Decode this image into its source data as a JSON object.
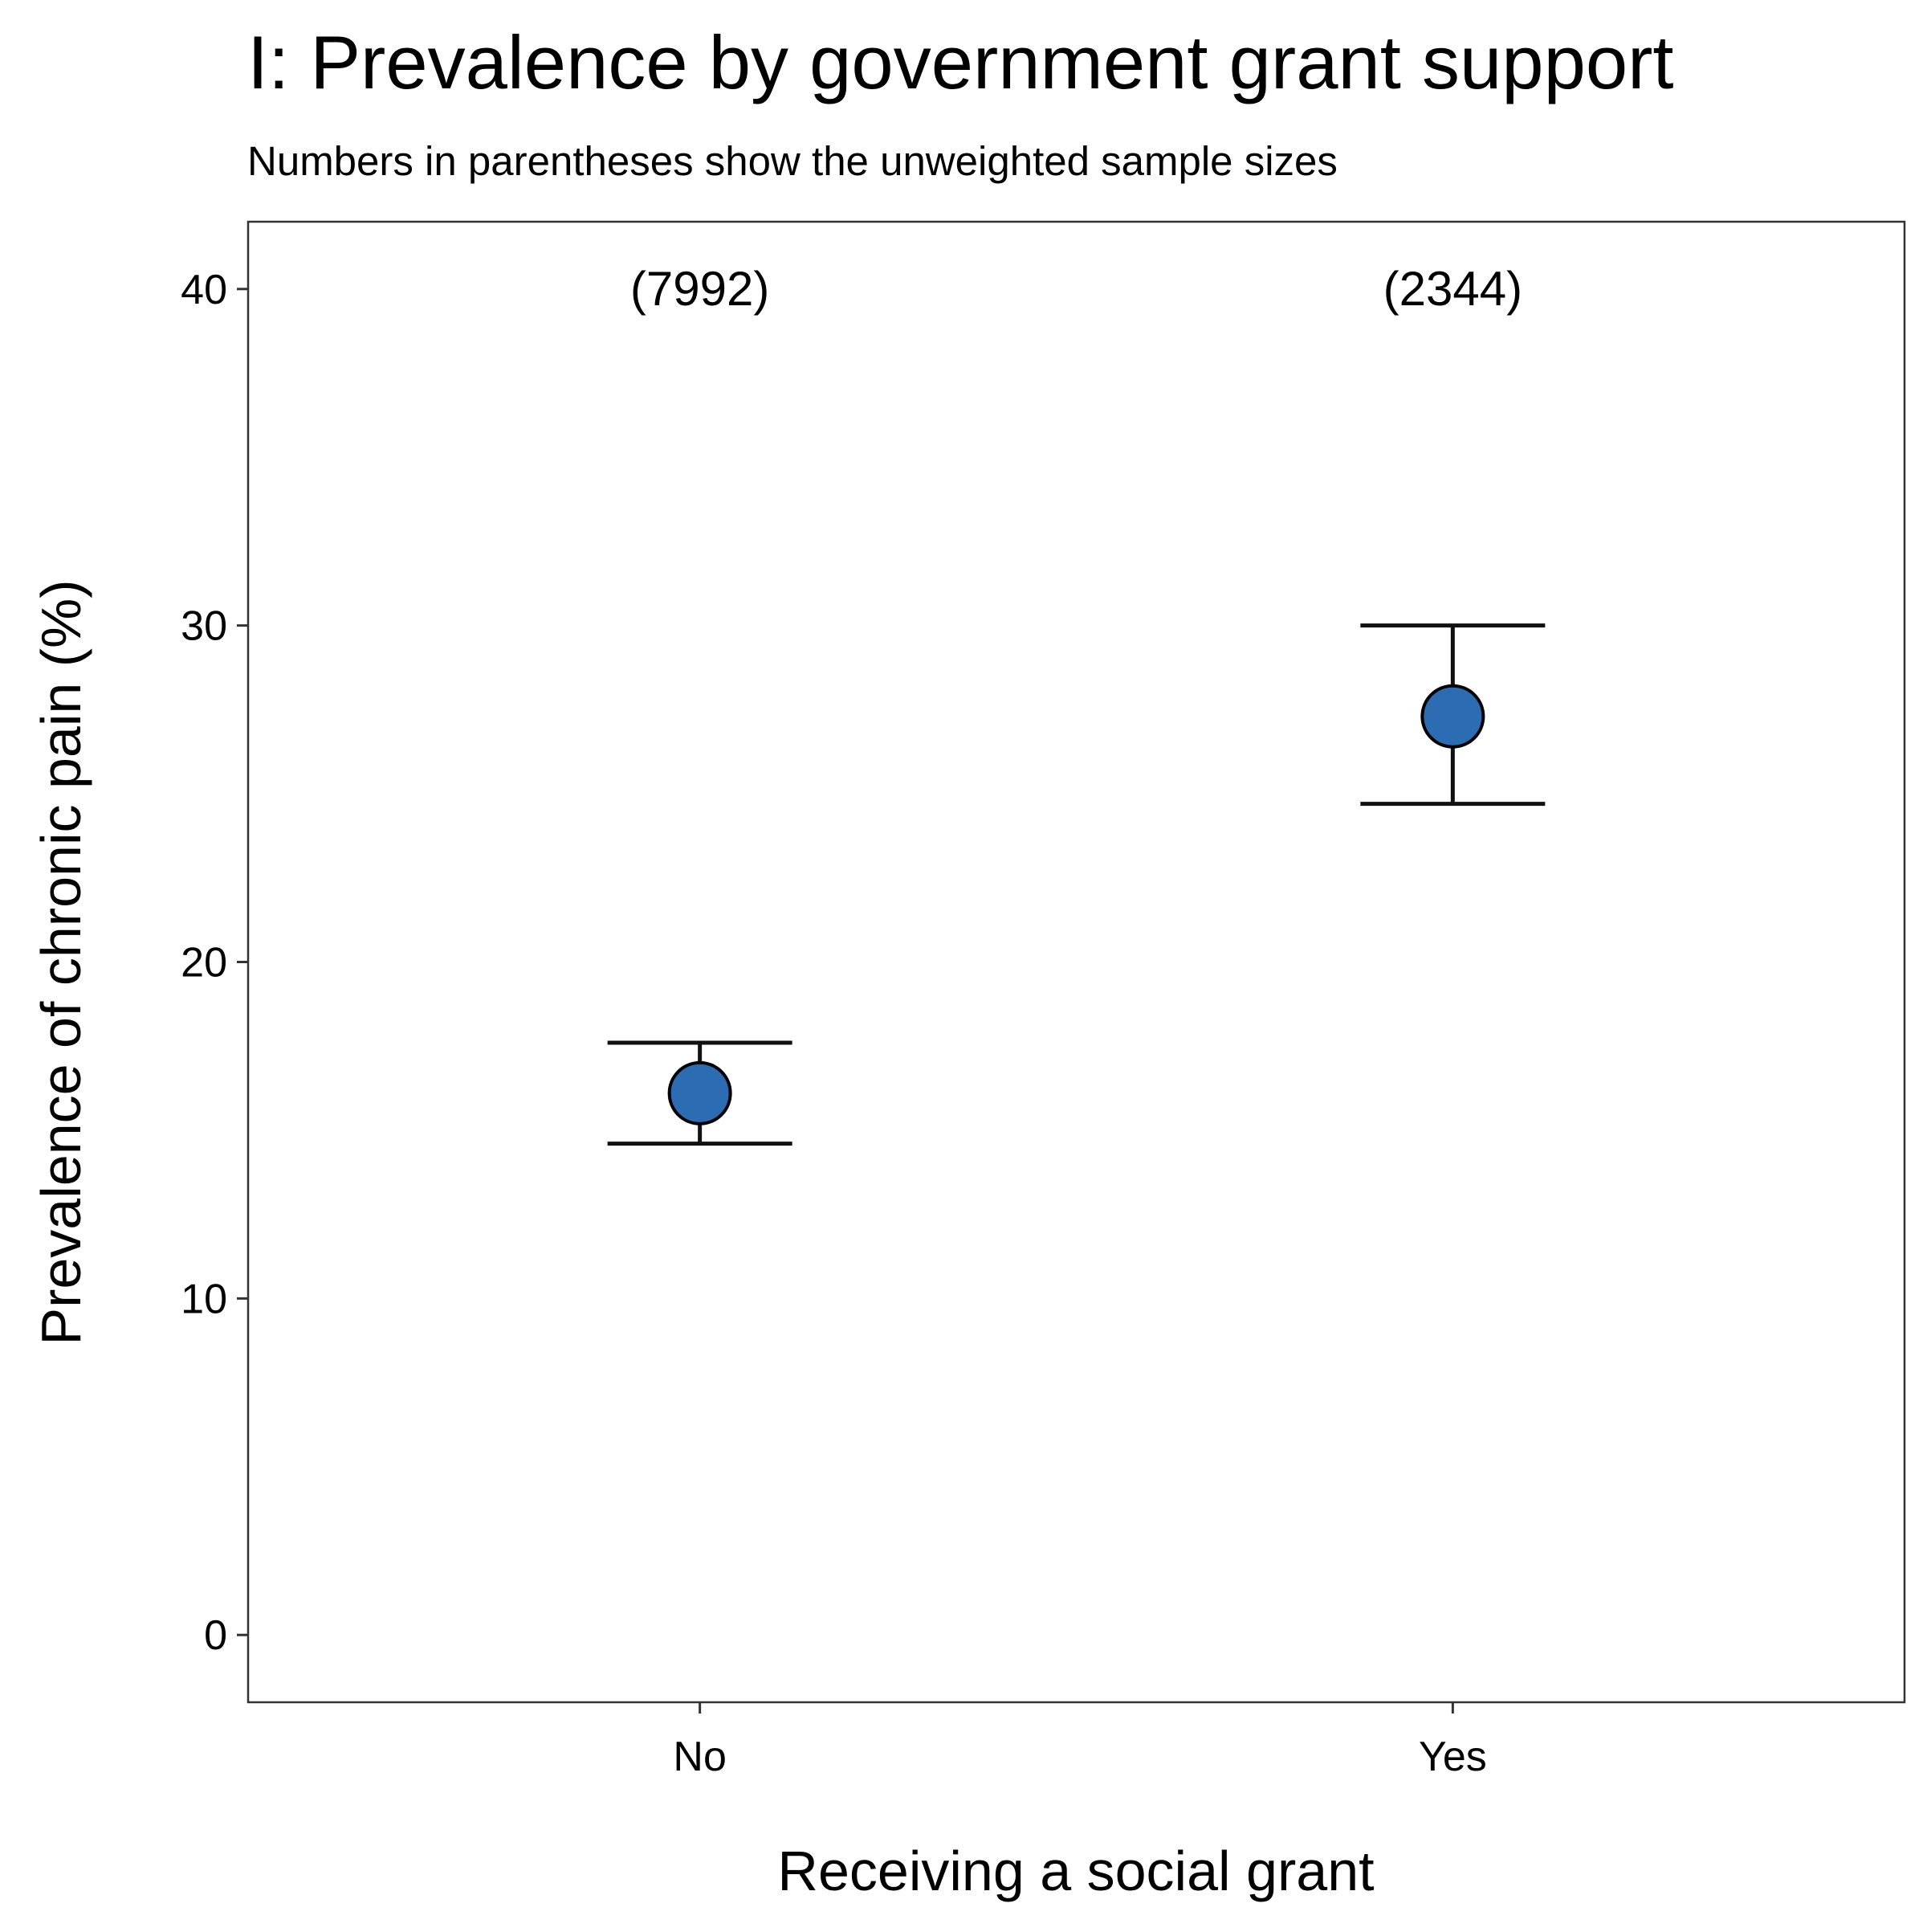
{
  "chart_data": {
    "type": "scatter",
    "title": "I: Prevalence by government grant support",
    "subtitle": "Numbers in parentheses show the unweighted sample sizes",
    "xlabel": "Receiving a social grant",
    "ylabel": "Prevalence of chronic pain (%)",
    "categories": [
      "No",
      "Yes"
    ],
    "ylim": [
      -2,
      42
    ],
    "yticks": [
      0,
      10,
      20,
      30,
      40
    ],
    "grid": false,
    "legend": "none",
    "error_bars": true,
    "series": [
      {
        "values": [
          16.1,
          27.3
        ],
        "lower": [
          14.6,
          24.7
        ],
        "upper": [
          17.6,
          30.0
        ],
        "sample_size_labels": [
          "(7992)",
          "(2344)"
        ],
        "point_fill": "#2B6CB2",
        "point_stroke": "#000000"
      }
    ]
  }
}
